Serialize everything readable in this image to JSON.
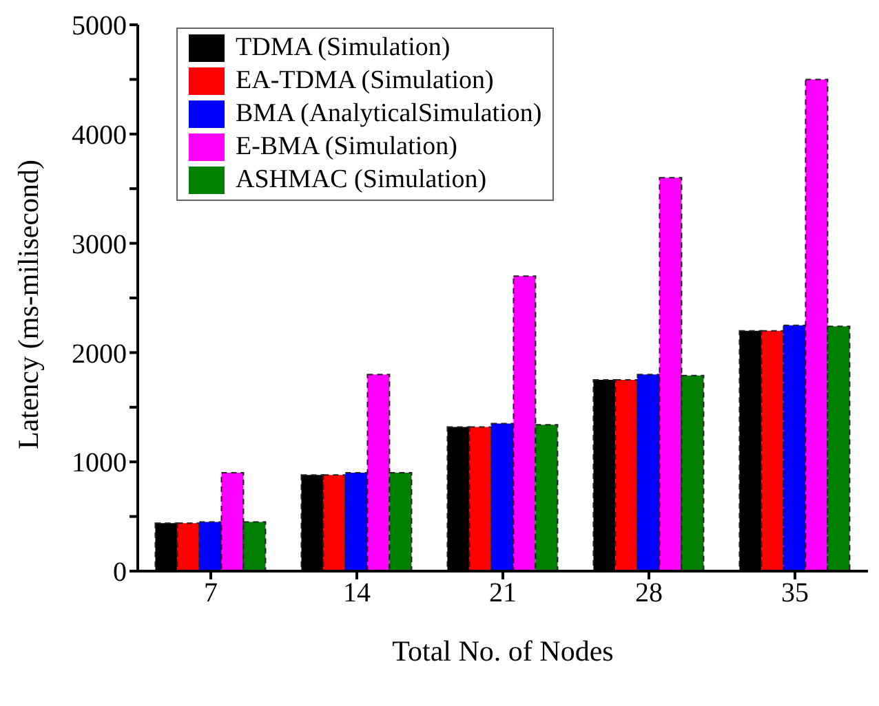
{
  "chart_data": {
    "type": "bar",
    "xlabel": "Total No. of Nodes",
    "ylabel": "Latency (ms-milisecond)",
    "categories": [
      "7",
      "14",
      "21",
      "28",
      "35"
    ],
    "series": [
      {
        "name": "TDMA (Simulation)",
        "color": "#000000",
        "values": [
          440,
          880,
          1320,
          1750,
          2200
        ]
      },
      {
        "name": "EA-TDMA (Simulation)",
        "color": "#ff0000",
        "values": [
          440,
          880,
          1320,
          1750,
          2200
        ]
      },
      {
        "name": "BMA (AnalyticalSimulation)",
        "color": "#0000ff",
        "values": [
          450,
          900,
          1350,
          1800,
          2250
        ]
      },
      {
        "name": "E-BMA (Simulation)",
        "color": "#ff00ff",
        "values": [
          900,
          1800,
          2700,
          3600,
          4500
        ]
      },
      {
        "name": "ASHMAC (Simulation)",
        "color": "#008000",
        "values": [
          450,
          900,
          1340,
          1790,
          2240
        ]
      }
    ],
    "ylim": [
      0,
      5000
    ],
    "yticks": [
      0,
      {
        "value": 500,
        "label": null
      },
      1000,
      {
        "value": 1500,
        "label": null
      },
      2000,
      {
        "value": 2500,
        "label": null
      },
      3000,
      {
        "value": 3500,
        "label": null
      },
      4000,
      {
        "value": 4500,
        "label": null
      },
      5000
    ],
    "legend": "top left",
    "grid": false
  }
}
